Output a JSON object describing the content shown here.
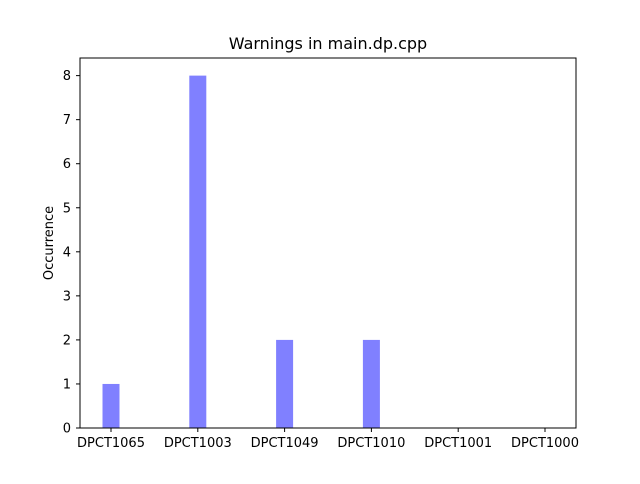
{
  "chart_data": {
    "type": "bar",
    "title": "Warnings in main.dp.cpp",
    "xlabel": "",
    "ylabel": "Occurrence",
    "categories": [
      "DPCT1065",
      "DPCT1003",
      "DPCT1049",
      "DPCT1010",
      "DPCT1001",
      "DPCT1000"
    ],
    "values": [
      1,
      8,
      2,
      2,
      0,
      0
    ],
    "ylim": [
      0,
      8.4
    ],
    "yticks": [
      "0",
      "1",
      "2",
      "3",
      "4",
      "5",
      "6",
      "7",
      "8"
    ],
    "bar_color": "#8080ff",
    "grid": false,
    "legend": "none"
  }
}
